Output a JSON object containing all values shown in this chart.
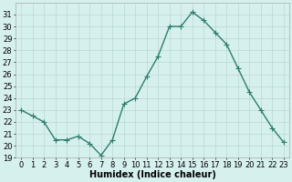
{
  "x": [
    0,
    1,
    2,
    3,
    4,
    5,
    6,
    7,
    8,
    9,
    10,
    11,
    12,
    13,
    14,
    15,
    16,
    17,
    18,
    19,
    20,
    21,
    22,
    23
  ],
  "y": [
    23.0,
    22.5,
    22.0,
    20.5,
    20.5,
    20.8,
    20.2,
    19.2,
    20.5,
    23.5,
    24.0,
    25.8,
    27.5,
    30.0,
    30.0,
    31.2,
    30.5,
    29.5,
    28.5,
    26.5,
    24.5,
    23.0,
    21.5,
    20.3
  ],
  "line_color": "#2e7d6e",
  "marker": "+",
  "marker_size": 4,
  "marker_color": "#2e7d6e",
  "bg_color": "#d6f0ee",
  "grid_color": "#b8d8d4",
  "xlabel": "Humidex (Indice chaleur)",
  "xlabel_fontsize": 7,
  "ylim": [
    19,
    32
  ],
  "xlim": [
    -0.5,
    23.5
  ],
  "yticks": [
    19,
    20,
    21,
    22,
    23,
    24,
    25,
    26,
    27,
    28,
    29,
    30,
    31
  ],
  "xticks": [
    0,
    1,
    2,
    3,
    4,
    5,
    6,
    7,
    8,
    9,
    10,
    11,
    12,
    13,
    14,
    15,
    16,
    17,
    18,
    19,
    20,
    21,
    22,
    23
  ],
  "tick_fontsize": 6,
  "line_width": 1.0,
  "fig_width": 3.2,
  "fig_height": 2.0,
  "dpi": 100
}
